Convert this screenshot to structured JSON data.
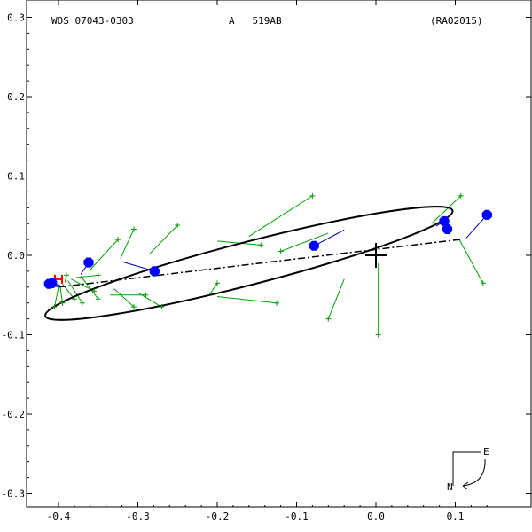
{
  "header": {
    "left": "WDS 07043-0303",
    "center": "A   519AB",
    "right": "(RAO2015)"
  },
  "compass": {
    "east": "E",
    "north": "N"
  },
  "chart_data": {
    "type": "scatter",
    "xlim": [
      -0.4,
      0.1
    ],
    "ylim": [
      -0.3,
      0.3
    ],
    "x_ticks": [
      -0.4,
      -0.3,
      -0.2,
      -0.1,
      0.0,
      0.1
    ],
    "x_tick_labels": [
      "-0.4",
      "-0.3",
      "-0.2",
      "-0.1",
      "0.0",
      "0.1"
    ],
    "y_ticks": [
      0.3,
      0.2,
      0.1,
      0.0,
      -0.1,
      -0.2,
      -0.3
    ],
    "y_tick_labels": [
      "0.3",
      "0.2",
      "0.1",
      "0.0",
      "-0.1",
      "-0.2",
      "-0.3"
    ],
    "primary": [
      0.0,
      0.0
    ],
    "orbit_ellipse": {
      "center": [
        -0.16,
        -0.01
      ],
      "semi_major": 0.265,
      "semi_minor": 0.027,
      "angle_deg": 14.5
    },
    "line_of_nodes": [
      [
        0.106,
        0.02
      ],
      [
        -0.4,
        -0.04
      ]
    ],
    "periastron_marker": [
      -0.4,
      -0.03
    ],
    "micrometric_observations": [
      {
        "obs": [
          -0.405,
          -0.065
        ],
        "pred": [
          -0.4,
          -0.04
        ]
      },
      {
        "obs": [
          -0.395,
          -0.06
        ],
        "pred": [
          -0.398,
          -0.038
        ]
      },
      {
        "obs": [
          -0.38,
          -0.055
        ],
        "pred": [
          -0.395,
          -0.036
        ]
      },
      {
        "obs": [
          -0.39,
          -0.025
        ],
        "pred": [
          -0.392,
          -0.034
        ]
      },
      {
        "obs": [
          -0.37,
          -0.06
        ],
        "pred": [
          -0.388,
          -0.032
        ]
      },
      {
        "obs": [
          -0.355,
          -0.045
        ],
        "pred": [
          -0.384,
          -0.03
        ]
      },
      {
        "obs": [
          -0.35,
          -0.025
        ],
        "pred": [
          -0.378,
          -0.028
        ]
      },
      {
        "obs": [
          -0.35,
          -0.055
        ],
        "pred": [
          -0.372,
          -0.026
        ]
      },
      {
        "obs": [
          -0.325,
          0.02
        ],
        "pred": [
          -0.36,
          -0.018
        ]
      },
      {
        "obs": [
          -0.305,
          0.033
        ],
        "pred": [
          -0.322,
          -0.004
        ]
      },
      {
        "obs": [
          -0.305,
          -0.065
        ],
        "pred": [
          -0.33,
          -0.042
        ]
      },
      {
        "obs": [
          -0.27,
          -0.065
        ],
        "pred": [
          -0.3,
          -0.047
        ]
      },
      {
        "obs": [
          -0.25,
          0.038
        ],
        "pred": [
          -0.285,
          0.002
        ]
      },
      {
        "obs": [
          -0.29,
          -0.05
        ],
        "pred": [
          -0.335,
          -0.05
        ]
      },
      {
        "obs": [
          -0.2,
          -0.035
        ],
        "pred": [
          -0.21,
          -0.05
        ]
      },
      {
        "obs": [
          -0.125,
          -0.06
        ],
        "pred": [
          -0.2,
          -0.052
        ]
      },
      {
        "obs": [
          -0.145,
          0.013
        ],
        "pred": [
          -0.2,
          0.018
        ]
      },
      {
        "obs": [
          -0.08,
          0.075
        ],
        "pred": [
          -0.16,
          0.024
        ]
      },
      {
        "obs": [
          -0.12,
          0.005
        ],
        "pred": [
          -0.06,
          0.028
        ]
      },
      {
        "obs": [
          -0.06,
          -0.08
        ],
        "pred": [
          -0.04,
          -0.03
        ]
      },
      {
        "obs": [
          0.003,
          -0.1
        ],
        "pred": [
          0.003,
          -0.01
        ]
      },
      {
        "obs": [
          0.107,
          0.075
        ],
        "pred": [
          0.07,
          0.04
        ]
      },
      {
        "obs": [
          0.135,
          -0.035
        ],
        "pred": [
          0.105,
          0.02
        ]
      }
    ],
    "interferometric_observations": [
      {
        "obs": [
          -0.412,
          -0.036
        ],
        "pred": [
          -0.4,
          -0.04
        ]
      },
      {
        "obs": [
          -0.408,
          -0.035
        ],
        "pred": [
          -0.398,
          -0.038
        ]
      },
      {
        "obs": [
          -0.362,
          -0.009
        ],
        "pred": [
          -0.372,
          -0.024
        ]
      },
      {
        "obs": [
          -0.279,
          -0.02
        ],
        "pred": [
          -0.32,
          -0.008
        ]
      },
      {
        "obs": [
          -0.078,
          0.012
        ],
        "pred": [
          -0.04,
          0.032
        ]
      },
      {
        "obs": [
          0.086,
          0.043
        ],
        "pred": [
          0.076,
          0.037
        ]
      },
      {
        "obs": [
          0.09,
          0.033
        ],
        "pred": [
          0.094,
          0.03
        ]
      },
      {
        "obs": [
          0.14,
          0.051
        ],
        "pred": [
          0.114,
          0.022
        ]
      }
    ],
    "colors": {
      "orbit": "#000000",
      "micrometric": "#00a000",
      "interferometric_point": "#0000ff",
      "interferometric_residual": "#0000a0",
      "periastron": "#ff0000",
      "axes": "#000000"
    }
  }
}
